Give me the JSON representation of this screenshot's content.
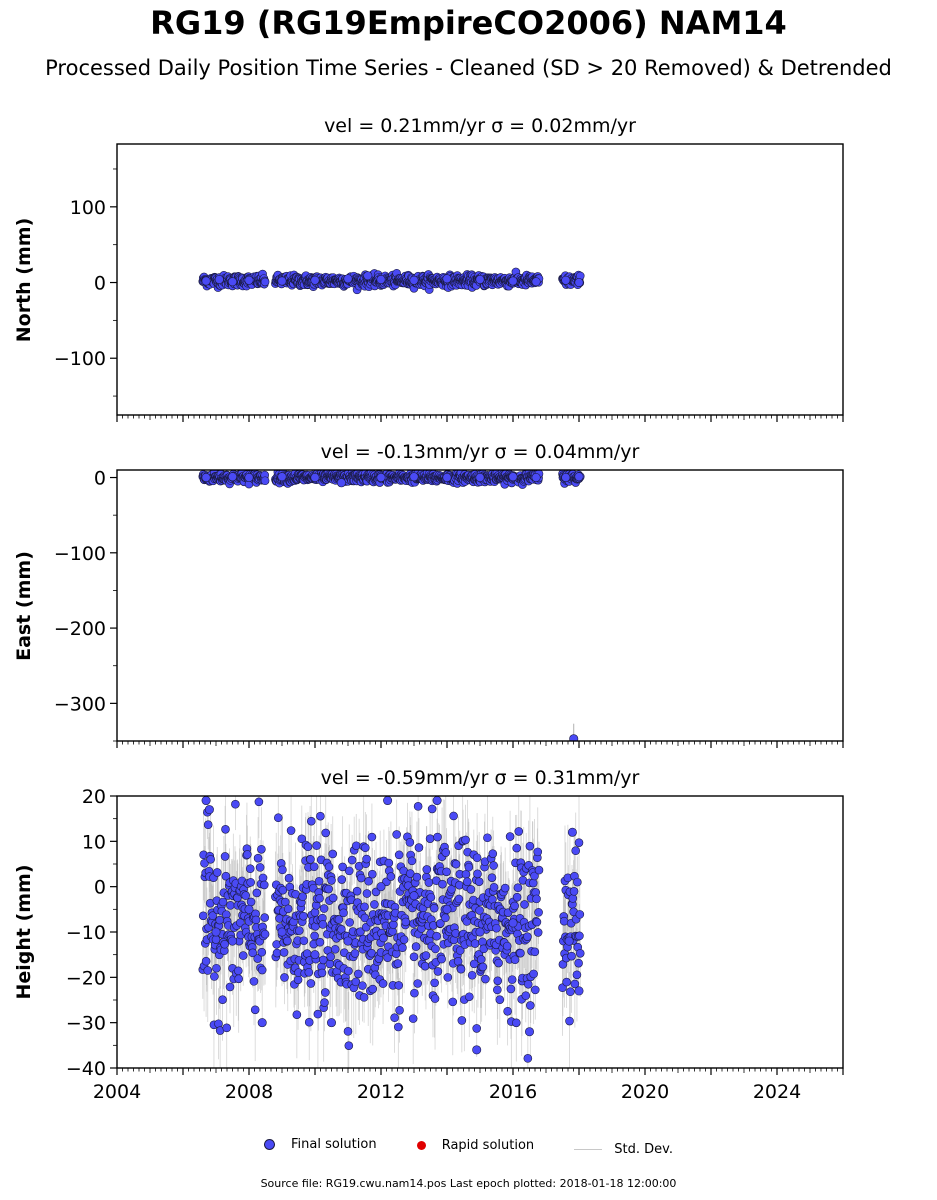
{
  "figure": {
    "title": "RG19 (RG19EmpireCO2006) NAM14",
    "subtitle": "Processed Daily Position Time Series - Cleaned (SD > 20 Removed) & Detrended",
    "footer": "Source file: RG19.cwu.nam14.pos  Last epoch plotted: 2018-01-18 12:00:00"
  },
  "legend": {
    "final": "Final solution",
    "rapid": "Rapid solution",
    "std": "Std. Dev."
  },
  "colors": {
    "final": "#4a4af5",
    "final_edge": "#1a1a40",
    "rapid": "#e00000",
    "std": "#b0b0b0"
  },
  "chart_data": [
    {
      "type": "scatter",
      "title": "vel = 0.21mm/yr   σ = 0.02mm/yr",
      "ylabel": "North (mm)",
      "xlim": [
        2004,
        2026
      ],
      "ylim": [
        -175,
        183
      ],
      "yticks": [
        -100,
        0,
        100
      ],
      "yticklabels": [
        "−100",
        "0",
        "100"
      ],
      "xticks": [
        2004,
        2008,
        2012,
        2016,
        2020,
        2024
      ],
      "show_xticklabels": false,
      "data_ranges": [
        [
          2006.6,
          2008.5
        ],
        [
          2008.8,
          2016.8
        ],
        [
          2017.5,
          2018.05
        ]
      ],
      "sample_points": [
        {
          "x": 2006.7,
          "y": 2
        },
        {
          "x": 2007.1,
          "y": 4
        },
        {
          "x": 2007.5,
          "y": 1
        },
        {
          "x": 2008.0,
          "y": 3
        },
        {
          "x": 2009.0,
          "y": 2
        },
        {
          "x": 2010.0,
          "y": 3
        },
        {
          "x": 2011.0,
          "y": 5
        },
        {
          "x": 2011.6,
          "y": 9
        },
        {
          "x": 2012.0,
          "y": 4
        },
        {
          "x": 2013.0,
          "y": 3
        },
        {
          "x": 2014.0,
          "y": 5
        },
        {
          "x": 2015.0,
          "y": 4
        },
        {
          "x": 2016.0,
          "y": 2
        },
        {
          "x": 2016.7,
          "y": 1
        },
        {
          "x": 2017.6,
          "y": 3
        },
        {
          "x": 2018.0,
          "y": 0
        }
      ],
      "mean": 2.5,
      "spread": 3.5
    },
    {
      "type": "scatter",
      "title": "vel = -0.13mm/yr   σ = 0.04mm/yr",
      "ylabel": "East (mm)",
      "xlim": [
        2004,
        2026
      ],
      "ylim": [
        -350,
        10
      ],
      "yticks": [
        -300,
        -200,
        -100,
        0
      ],
      "yticklabels": [
        "−300",
        "−200",
        "−100",
        "0"
      ],
      "xticks": [
        2004,
        2008,
        2012,
        2016,
        2020,
        2024
      ],
      "show_xticklabels": false,
      "data_ranges": [
        [
          2006.6,
          2008.5
        ],
        [
          2008.8,
          2016.8
        ],
        [
          2017.5,
          2018.05
        ]
      ],
      "sample_points": [
        {
          "x": 2006.7,
          "y": 0
        },
        {
          "x": 2007.5,
          "y": 1
        },
        {
          "x": 2008.0,
          "y": 0
        },
        {
          "x": 2009.0,
          "y": 1
        },
        {
          "x": 2010.0,
          "y": 0
        },
        {
          "x": 2010.8,
          "y": -7
        },
        {
          "x": 2012.0,
          "y": 0
        },
        {
          "x": 2013.0,
          "y": 1
        },
        {
          "x": 2014.0,
          "y": 0
        },
        {
          "x": 2015.0,
          "y": 0
        },
        {
          "x": 2016.0,
          "y": 1
        },
        {
          "x": 2016.7,
          "y": 0
        },
        {
          "x": 2017.6,
          "y": 0
        },
        {
          "x": 2018.0,
          "y": 1
        }
      ],
      "outliers": [
        {
          "x": 2017.84,
          "y": -347
        }
      ],
      "mean": 0,
      "spread": 3
    },
    {
      "type": "scatter",
      "title": "vel = -0.59mm/yr   σ = 0.31mm/yr",
      "ylabel": "Height (mm)",
      "xlim": [
        2004,
        2026
      ],
      "ylim": [
        -40,
        20
      ],
      "yticks": [
        -40,
        -30,
        -20,
        -10,
        0,
        10,
        20
      ],
      "yticklabels": [
        "−40",
        "−30",
        "−20",
        "−10",
        "0",
        "10",
        "20"
      ],
      "xticks": [
        2004,
        2008,
        2012,
        2016,
        2020,
        2024
      ],
      "xticklabels": [
        "2004",
        "2008",
        "2012",
        "2016",
        "2020",
        "2024"
      ],
      "show_xticklabels": true,
      "data_ranges": [
        [
          2006.6,
          2008.5
        ],
        [
          2008.8,
          2016.8
        ],
        [
          2017.5,
          2018.05
        ]
      ],
      "sample_points": [
        {
          "x": 2006.7,
          "y": 19
        },
        {
          "x": 2006.8,
          "y": 17
        },
        {
          "x": 2007.0,
          "y": -10
        },
        {
          "x": 2007.5,
          "y": -12
        },
        {
          "x": 2008.0,
          "y": -5
        },
        {
          "x": 2008.4,
          "y": -30
        },
        {
          "x": 2009.0,
          "y": -10
        },
        {
          "x": 2010.0,
          "y": -15
        },
        {
          "x": 2010.5,
          "y": -30
        },
        {
          "x": 2011.0,
          "y": -12
        },
        {
          "x": 2012.0,
          "y": 0
        },
        {
          "x": 2012.2,
          "y": 19
        },
        {
          "x": 2013.0,
          "y": -2
        },
        {
          "x": 2013.7,
          "y": 19
        },
        {
          "x": 2014.0,
          "y": -5
        },
        {
          "x": 2014.9,
          "y": -36
        },
        {
          "x": 2015.0,
          "y": -10
        },
        {
          "x": 2016.0,
          "y": -8
        },
        {
          "x": 2016.5,
          "y": -32
        },
        {
          "x": 2017.7,
          "y": -12
        },
        {
          "x": 2017.8,
          "y": 12
        },
        {
          "x": 2018.0,
          "y": -23
        }
      ],
      "mean": -8,
      "spread": 9
    }
  ]
}
